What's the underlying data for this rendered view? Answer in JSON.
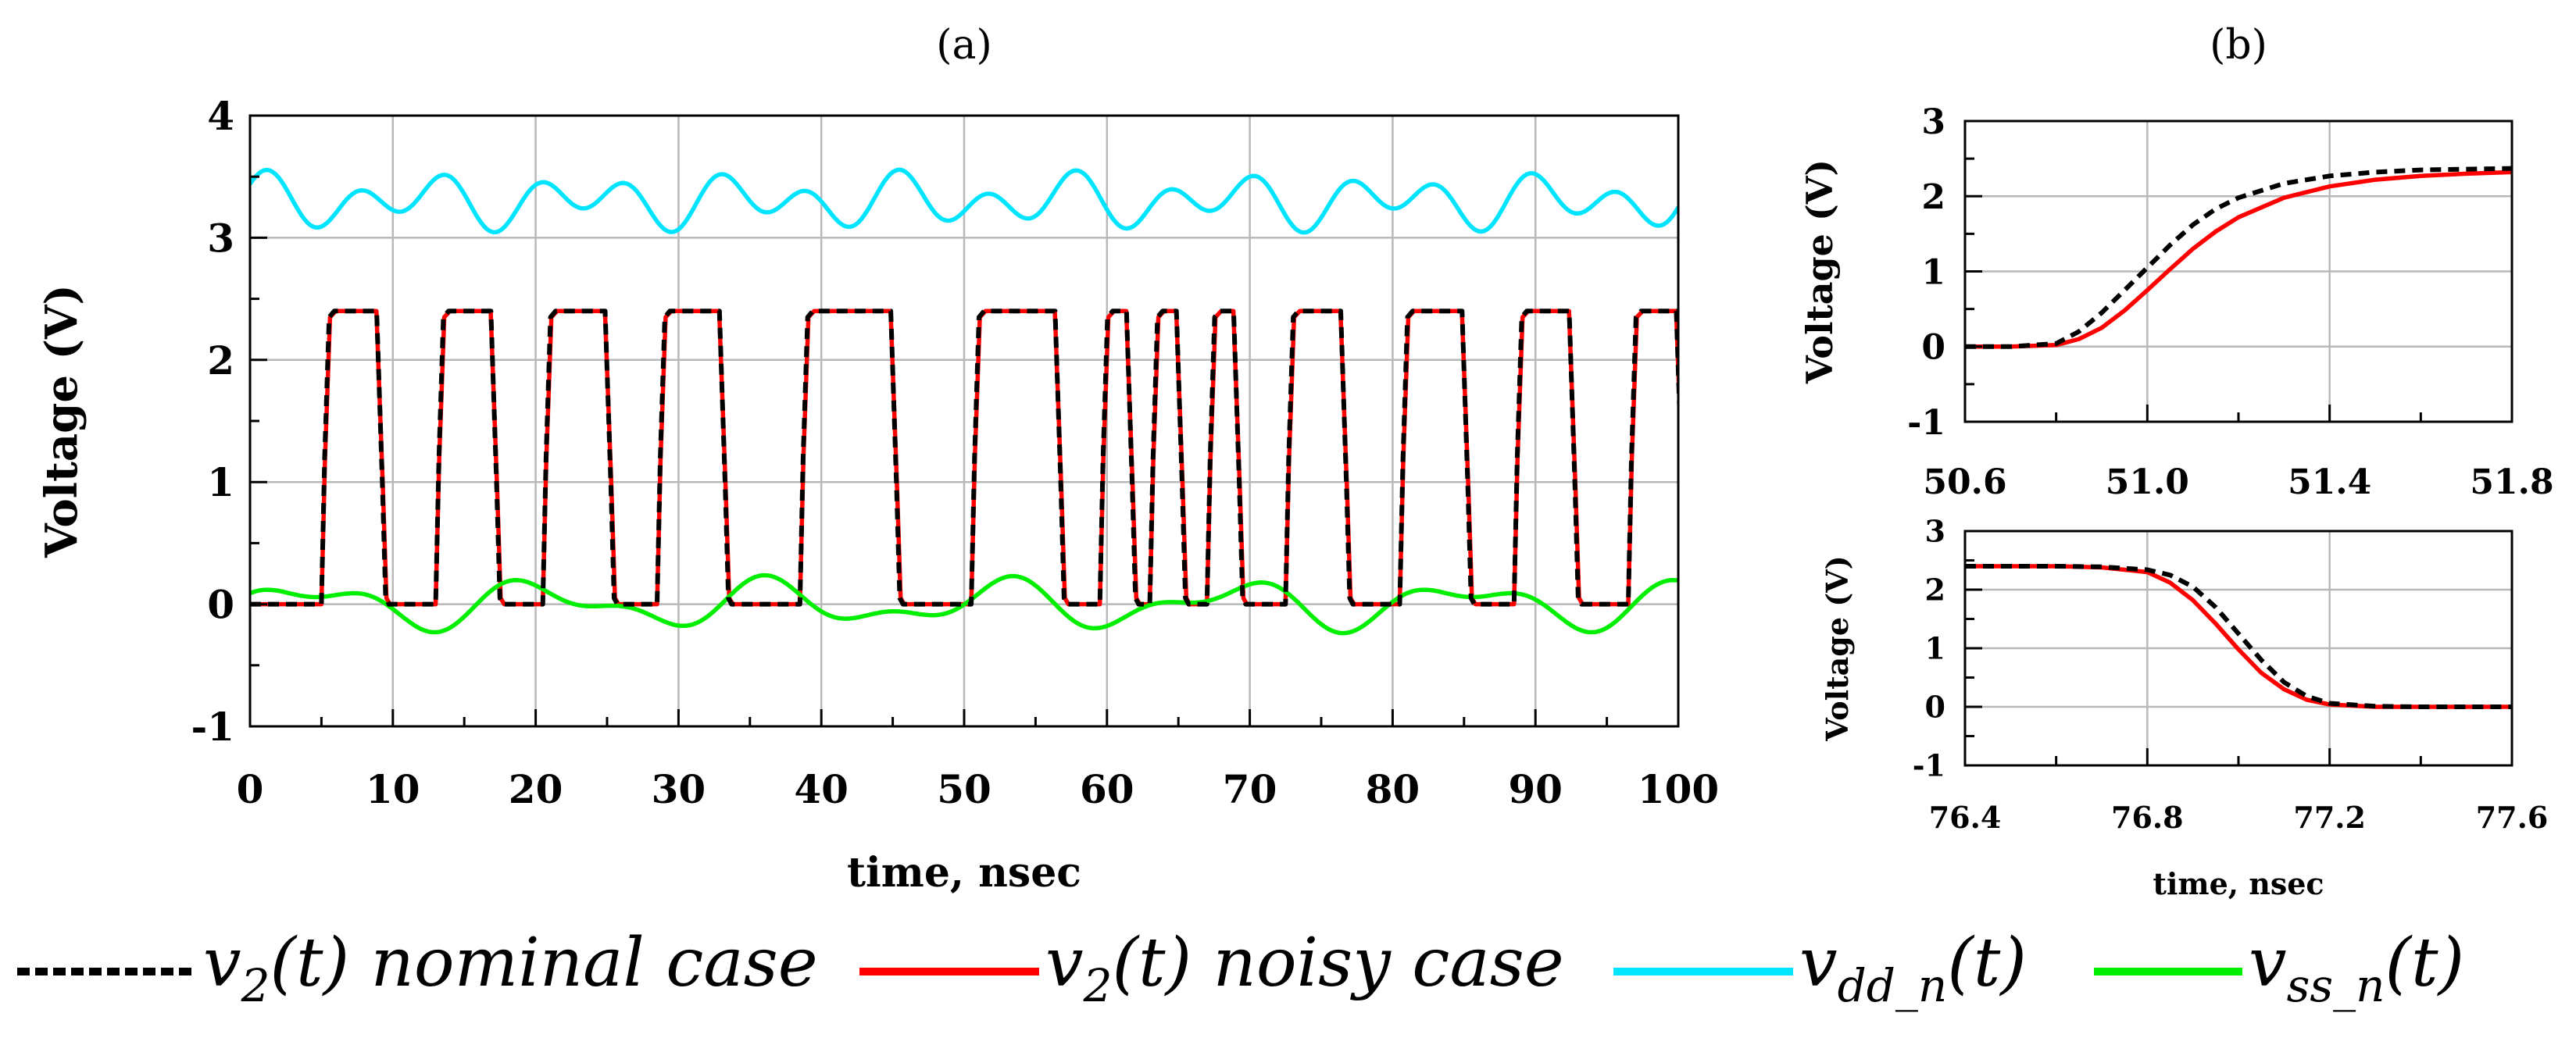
{
  "chart_data": [
    {
      "id": "a",
      "panel_label": "(a)",
      "type": "line",
      "xlabel": "time, nsec",
      "ylabel": "Voltage (V)",
      "xlim": [
        0,
        100
      ],
      "ylim": [
        -1,
        4
      ],
      "xticks": [
        0,
        10,
        20,
        30,
        40,
        50,
        60,
        70,
        80,
        90,
        100
      ],
      "xtick_labels": [
        "0",
        "10",
        "20",
        "30",
        "40",
        "50",
        "60",
        "70",
        "80",
        "90",
        "100"
      ],
      "yticks": [
        -1,
        0,
        1,
        2,
        3,
        4
      ],
      "ytick_labels": [
        "-1",
        "0",
        "1",
        "2",
        "3",
        "4"
      ],
      "grid": true,
      "series": [
        {
          "name": "v2(t) nominal case",
          "color": "#000000",
          "dash": true,
          "pulses": [
            [
              5,
              9
            ],
            [
              13,
              17
            ],
            [
              20.5,
              25
            ],
            [
              28.5,
              33
            ],
            [
              38.5,
              45
            ],
            [
              50.5,
              56.5
            ],
            [
              59.5,
              61.5
            ],
            [
              63,
              65
            ],
            [
              67,
              69
            ],
            [
              72.5,
              76.5
            ],
            [
              80.5,
              85
            ],
            [
              88.5,
              92.5
            ],
            [
              96.5,
              100
            ]
          ],
          "high": 2.4,
          "low": 0,
          "rise_ns": 0.9
        },
        {
          "name": "v2(t) noisy case",
          "color": "#ff0000",
          "dash": false,
          "pulses": [
            [
              5,
              9
            ],
            [
              13,
              17
            ],
            [
              20.5,
              25
            ],
            [
              28.5,
              33
            ],
            [
              38.5,
              45
            ],
            [
              50.5,
              56.5
            ],
            [
              59.5,
              61.5
            ],
            [
              63,
              65
            ],
            [
              67,
              69
            ],
            [
              72.5,
              76.5
            ],
            [
              80.5,
              85
            ],
            [
              88.5,
              92.5
            ],
            [
              96.5,
              100
            ]
          ],
          "high": 2.4,
          "low": 0,
          "rise_ns": 1.0
        },
        {
          "name": "vdd_n(t)",
          "color": "#00e5ff",
          "offset": 3.3,
          "components": [
            [
              0.16,
              6.3,
              0.3
            ],
            [
              0.1,
              11.3,
              1.2
            ]
          ]
        },
        {
          "name": "vss_n(t)",
          "color": "#00ee00",
          "offset": 0.0,
          "components": [
            [
              0.15,
              16.2,
              0.0
            ],
            [
              0.09,
              9.0,
              1.7
            ]
          ]
        }
      ]
    },
    {
      "id": "b_top",
      "panel_label": "(b)",
      "type": "line",
      "xlabel": "",
      "ylabel": "Voltage (V)",
      "xlim": [
        50.6,
        51.8
      ],
      "ylim": [
        -1,
        3
      ],
      "xticks": [
        50.6,
        51.0,
        51.4,
        51.8
      ],
      "xtick_labels": [
        "50.6",
        "51.0",
        "51.4",
        "51.8"
      ],
      "yticks": [
        -1,
        0,
        1,
        2,
        3
      ],
      "ytick_labels": [
        "-1",
        "0",
        "1",
        "2",
        "3"
      ],
      "grid": true,
      "series": [
        {
          "name": "v2(t) nominal case",
          "color": "#000000",
          "dash": true,
          "x": [
            50.6,
            50.7,
            50.8,
            50.85,
            50.9,
            50.95,
            51.0,
            51.05,
            51.1,
            51.15,
            51.2,
            51.3,
            51.4,
            51.5,
            51.6,
            51.7,
            51.8
          ],
          "y": [
            0,
            0,
            0.04,
            0.2,
            0.45,
            0.75,
            1.05,
            1.35,
            1.62,
            1.83,
            1.98,
            2.17,
            2.27,
            2.32,
            2.35,
            2.36,
            2.37
          ]
        },
        {
          "name": "v2(t) noisy case",
          "color": "#ff0000",
          "dash": false,
          "x": [
            50.6,
            50.7,
            50.8,
            50.85,
            50.9,
            50.95,
            51.0,
            51.05,
            51.1,
            51.15,
            51.2,
            51.3,
            51.4,
            51.5,
            51.6,
            51.7,
            51.8
          ],
          "y": [
            0,
            0,
            0.02,
            0.1,
            0.25,
            0.48,
            0.75,
            1.03,
            1.3,
            1.53,
            1.72,
            1.98,
            2.13,
            2.22,
            2.27,
            2.3,
            2.32
          ]
        }
      ]
    },
    {
      "id": "b_bottom",
      "panel_label": "",
      "type": "line",
      "xlabel": "time, nsec",
      "ylabel": "Voltage (V)",
      "xlim": [
        76.4,
        77.6
      ],
      "ylim": [
        -1,
        3
      ],
      "xticks": [
        76.4,
        76.8,
        77.2,
        77.6
      ],
      "xtick_labels": [
        "76.4",
        "76.8",
        "77.2",
        "77.6"
      ],
      "yticks": [
        -1,
        0,
        1,
        2,
        3
      ],
      "ytick_labels": [
        "-1",
        "0",
        "1",
        "2",
        "3"
      ],
      "grid": true,
      "series": [
        {
          "name": "v2(t) nominal case",
          "color": "#000000",
          "dash": true,
          "x": [
            76.4,
            76.6,
            76.7,
            76.8,
            76.85,
            76.9,
            76.95,
            77.0,
            77.05,
            77.1,
            77.15,
            77.2,
            77.3,
            77.4,
            77.6
          ],
          "y": [
            2.4,
            2.4,
            2.39,
            2.34,
            2.25,
            2.05,
            1.7,
            1.25,
            0.8,
            0.42,
            0.18,
            0.06,
            0.01,
            0,
            0
          ]
        },
        {
          "name": "v2(t) noisy case",
          "color": "#ff0000",
          "dash": false,
          "x": [
            76.4,
            76.6,
            76.7,
            76.8,
            76.85,
            76.9,
            76.95,
            77.0,
            77.05,
            77.1,
            77.15,
            77.2,
            77.3,
            77.4,
            77.6
          ],
          "y": [
            2.4,
            2.4,
            2.38,
            2.3,
            2.12,
            1.82,
            1.42,
            0.98,
            0.58,
            0.3,
            0.12,
            0.04,
            0,
            0,
            0
          ]
        }
      ]
    }
  ],
  "legend": {
    "entries": [
      {
        "color": "#000000",
        "dash": true,
        "var": "v",
        "sub": "2",
        "rest": "(t) nominal case"
      },
      {
        "color": "#ff0000",
        "dash": false,
        "var": "v",
        "sub": "2",
        "rest": "(t) noisy case"
      },
      {
        "color": "#00e5ff",
        "dash": false,
        "var": "v",
        "sub": "dd_n",
        "rest": "(t)"
      },
      {
        "color": "#00ee00",
        "dash": false,
        "var": "v",
        "sub": "ss_n",
        "rest": "(t)"
      }
    ]
  }
}
